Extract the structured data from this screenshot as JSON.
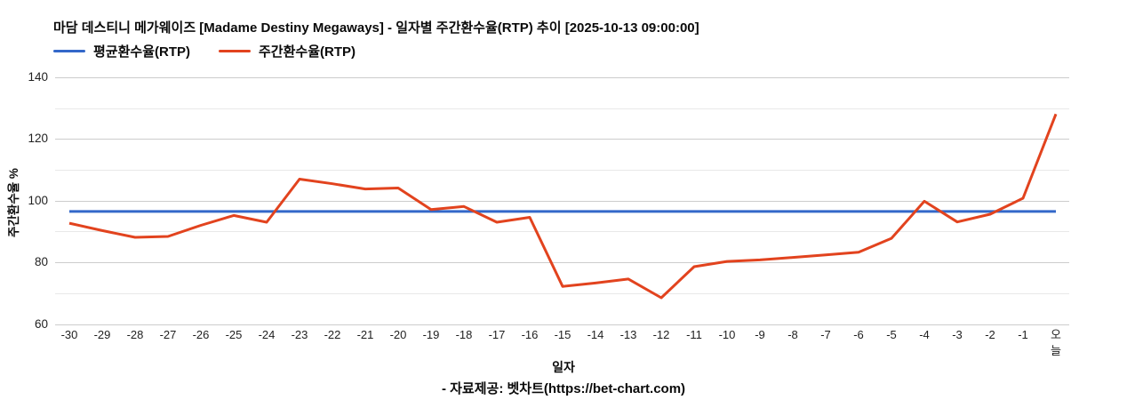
{
  "header": {
    "title": "마담 데스티니 메가웨이즈 [Madame Destiny Megaways] - 일자별 주간환수율(RTP) 추이 [2025-10-13 09:00:00]"
  },
  "footer": {
    "source": "- 자료제공: 벳차트(https://bet-chart.com)"
  },
  "colors": {
    "average_line": "#3368c9",
    "weekly_line": "#e2431e",
    "major_gridline": "#cccccc",
    "minor_gridline": "#e8e8e8",
    "tick_text": "#1f1f1f"
  },
  "chart_data": {
    "type": "line",
    "title": "마담 데스티니 메가웨이즈 [Madame Destiny Megaways] - 일자별 주간환수율(RTP) 추이 [2025-10-13 09:00:00]",
    "xlabel": "일자",
    "ylabel": "주간환수율 %",
    "ylim": [
      60,
      140
    ],
    "yticks_labeled": [
      60,
      80,
      100,
      120,
      140
    ],
    "yticks_minor": [
      70,
      90,
      110,
      130
    ],
    "grid": true,
    "legend_position": "top-left",
    "x_last_label_stacked": true,
    "categories": [
      "-30",
      "-29",
      "-28",
      "-27",
      "-26",
      "-25",
      "-24",
      "-23",
      "-22",
      "-21",
      "-20",
      "-19",
      "-18",
      "-17",
      "-16",
      "-15",
      "-14",
      "-13",
      "-12",
      "-11",
      "-10",
      "-9",
      "-8",
      "-7",
      "-6",
      "-5",
      "-4",
      "-3",
      "-2",
      "-1",
      "오늘"
    ],
    "series": [
      {
        "name": "평균환수율(RTP)",
        "color": "#3368c9",
        "values": [
          96.5,
          96.5,
          96.5,
          96.5,
          96.5,
          96.5,
          96.5,
          96.5,
          96.5,
          96.5,
          96.5,
          96.5,
          96.5,
          96.5,
          96.5,
          96.5,
          96.5,
          96.5,
          96.5,
          96.5,
          96.5,
          96.5,
          96.5,
          96.5,
          96.5,
          96.5,
          96.5,
          96.5,
          96.5,
          96.5,
          96.5
        ]
      },
      {
        "name": "주간환수율(RTP)",
        "color": "#e2431e",
        "values": [
          92.7,
          90.3,
          88.1,
          88.4,
          92.0,
          95.2,
          93.0,
          107.0,
          105.5,
          103.8,
          104.1,
          97.1,
          98.1,
          93.0,
          94.6,
          72.2,
          73.3,
          74.6,
          68.5,
          78.6,
          80.3,
          80.8,
          81.6,
          82.4,
          83.3,
          87.8,
          99.8,
          93.1,
          95.6,
          100.8,
          128.1
        ]
      }
    ]
  }
}
